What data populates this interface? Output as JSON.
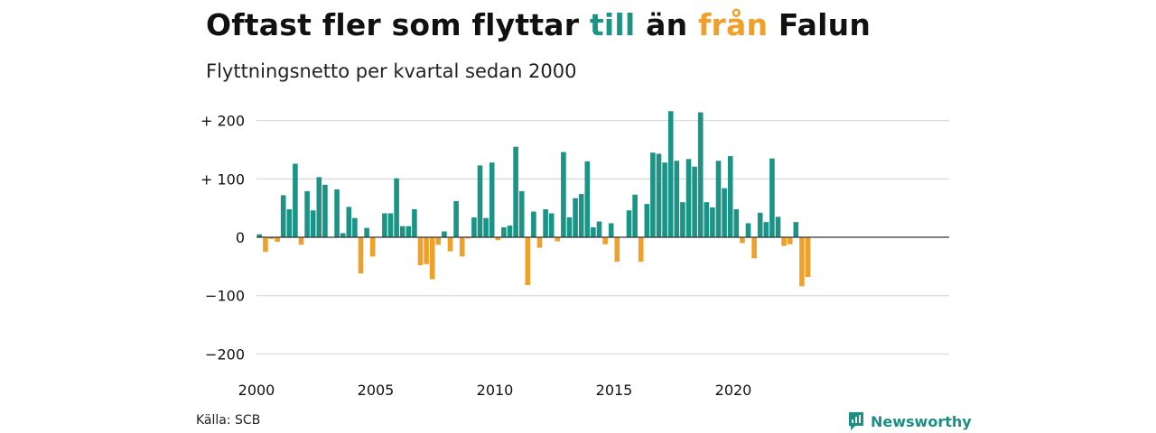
{
  "title": {
    "part1": "Oftast fler som flyttar ",
    "highlight_in": "till",
    "part2": " än ",
    "highlight_out": "från",
    "part3": " Falun"
  },
  "subtitle": "Flyttningsnetto per kvartal sedan 2000",
  "source": "Källa: SCB",
  "brand": "Newsworthy",
  "colors": {
    "positive": "#1b9385",
    "negative": "#f0a028",
    "grid": "#dcdcdc",
    "brand": "#1b8f85"
  },
  "chart_data": {
    "type": "bar",
    "x_start": "2000 Q1",
    "y_ticks": [
      200,
      100,
      0,
      -100,
      -200
    ],
    "y_tick_labels": [
      "+ 200",
      "+ 100",
      "0",
      "−100",
      "−200"
    ],
    "ylim": [
      -200,
      200
    ],
    "x_tick_labels": [
      "2000",
      "2005",
      "2010",
      "2015",
      "2020"
    ],
    "grid": true,
    "values": [
      5,
      -25,
      -3,
      -8,
      72,
      48,
      126,
      -13,
      79,
      46,
      103,
      90,
      0,
      82,
      7,
      52,
      33,
      -62,
      16,
      -33,
      0,
      41,
      41,
      101,
      19,
      19,
      48,
      -48,
      -46,
      -72,
      -13,
      10,
      -24,
      62,
      -33,
      -2,
      34,
      123,
      33,
      128,
      -5,
      17,
      20,
      155,
      79,
      -82,
      44,
      -18,
      48,
      41,
      -7,
      146,
      34,
      67,
      74,
      130,
      17,
      27,
      -12,
      24,
      -42,
      0,
      46,
      73,
      -42,
      57,
      145,
      143,
      128,
      216,
      131,
      60,
      134,
      121,
      214,
      60,
      51,
      131,
      84,
      139,
      48,
      -10,
      24,
      -36,
      42,
      26,
      135,
      35,
      -15,
      -12,
      26,
      -84,
      -68
    ]
  }
}
